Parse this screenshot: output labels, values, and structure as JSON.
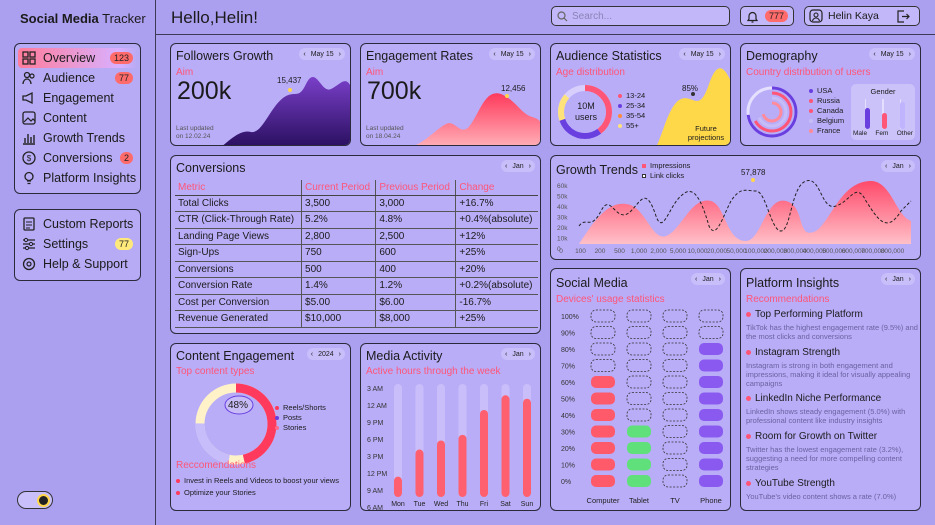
{
  "sidebar": {
    "brand_bold": "Social Media",
    "brand_rest": " Tracker",
    "items": [
      {
        "label": "Overview",
        "badge": "123"
      },
      {
        "label": "Audience",
        "badge": "77"
      },
      {
        "label": "Engagement"
      },
      {
        "label": "Content"
      },
      {
        "label": "Growth Trends"
      },
      {
        "label": "Conversions",
        "badge": "2"
      },
      {
        "label": "Platform Insights"
      }
    ],
    "items2": [
      {
        "label": "Custom Reports"
      },
      {
        "label": "Settings",
        "badge": "77"
      },
      {
        "label": "Help & Support"
      }
    ]
  },
  "header": {
    "greeting": "Hello,Helin!",
    "search_placeholder": "Search...",
    "notif_count": "777",
    "user_name": "Helin Kaya"
  },
  "followers": {
    "title": "Followers Growth",
    "period": "May 15",
    "aim_label": "Aim",
    "value": "200k",
    "peak": "15,437",
    "updated_label": "Last updated",
    "updated": "on 12.02.24"
  },
  "engagement": {
    "title": "Engagement Rates",
    "period": "May 15",
    "aim_label": "Aim",
    "value": "700k",
    "peak": "12,456",
    "updated_label": "Last updated",
    "updated": "on 18.04.24"
  },
  "audience": {
    "title": "Audience Statistics",
    "period": "May 15",
    "subtitle": "Age distribution",
    "center": "10M users",
    "ages": [
      "13-24",
      "25-34",
      "35-54",
      "55+"
    ],
    "proj_pct": "85%",
    "proj_label": "Future projections"
  },
  "demography": {
    "title": "Demography",
    "period": "May 15",
    "subtitle": "Country distribution of users",
    "countries": [
      "USA",
      "Russia",
      "Canada",
      "Belgium",
      "France"
    ],
    "gender_title": "Gender",
    "genders": [
      "Male",
      "Fem",
      "Other"
    ],
    "gender_values": [
      0.7,
      0.55,
      0.9
    ]
  },
  "conversions": {
    "title": "Conversions",
    "period": "Jan",
    "headers": [
      "Metric",
      "Current Period",
      "Previous Period",
      "Change"
    ],
    "rows": [
      [
        "Total Clicks",
        "3,500",
        "3,000",
        "+16.7%"
      ],
      [
        "CTR (Click-Through Rate)",
        "5.2%",
        "4.8%",
        "+0.4%(absolute)"
      ],
      [
        "Landing Page Views",
        "2,800",
        "2,500",
        "+12%"
      ],
      [
        "Sign-Ups",
        "750",
        "600",
        "+25%"
      ],
      [
        "Conversions",
        "500",
        "400",
        "+20%"
      ],
      [
        "Conversion Rate",
        "1.4%",
        "1.2%",
        "+0.2%(absolute)"
      ],
      [
        "Cost per Conversion",
        "$5.00",
        "$6.00",
        "-16.7%"
      ],
      [
        "Revenue Generated",
        "$10,000",
        "$8,000",
        "+25%"
      ]
    ]
  },
  "growth": {
    "title": "Growth Trends",
    "period": "Jan",
    "legend": [
      "Impressions",
      "Link clicks"
    ],
    "peak": "57,878",
    "yticks": [
      "60k",
      "50k",
      "40k",
      "30k",
      "20k",
      "10k",
      "0"
    ],
    "xticks": [
      "0",
      "100",
      "200",
      "500",
      "1,000",
      "2,000",
      "5,000",
      "10,000",
      "20,000",
      "50,000",
      "100,000",
      "200,000",
      "300,000",
      "400,000",
      "500,000",
      "600,000",
      "700,000",
      "800,000"
    ]
  },
  "social": {
    "title": "Social Media",
    "period": "Jan",
    "subtitle": "Devices' usage statistics",
    "yticks": [
      "100%",
      "90%",
      "80%",
      "70%",
      "60%",
      "50%",
      "40%",
      "30%",
      "20%",
      "10%",
      "0%"
    ],
    "devices": [
      "Computer",
      "Tablet",
      "TV",
      "Phone"
    ],
    "levels": [
      0.7,
      0.4,
      0,
      0.9
    ]
  },
  "platform": {
    "title": "Platform Insights",
    "period": "Jan",
    "subtitle": "Recommendations",
    "items": [
      {
        "h": "Top Performing Platform",
        "d": "TikTok has the highest engagement rate (9.5%) and the most clicks and conversions"
      },
      {
        "h": "Instagram Strength",
        "d": "Instagram is strong in both engagement and impressions, making it ideal for visually appealing campaigns"
      },
      {
        "h": "LinkedIn Niche Performance",
        "d": "LinkedIn shows steady engagement (5.0%) with professional content like industry insights"
      },
      {
        "h": "Room for Growth on Twitter",
        "d": "Twitter has the lowest engagement rate (3.2%), suggesting a need for more compelling content strategies"
      },
      {
        "h": "YouTube Strength",
        "d": "YouTube's video content shows a rate (7.0%)"
      }
    ]
  },
  "content": {
    "title": "Content Engagement",
    "period": "2024",
    "subtitle": "Top content types",
    "center": "48%",
    "types": [
      "Reels/Shorts",
      "Posts",
      "Stories"
    ],
    "rec_title": "Reccomendations",
    "recs": [
      "Invest in Reels and Videos to boost your views",
      "Optimize your Stories"
    ]
  },
  "media": {
    "title": "Media Activity",
    "period": "Jan",
    "subtitle": "Active hours through the week",
    "yticks": [
      "3 AM",
      "12 AM",
      "9 PM",
      "6 PM",
      "3 PM",
      "12 PM",
      "9 AM",
      "6 AM"
    ],
    "days": [
      "Mon",
      "Tue",
      "Wed",
      "Thu",
      "Fri",
      "Sat",
      "Sun"
    ],
    "values": [
      0.18,
      0.42,
      0.5,
      0.55,
      0.77,
      0.9,
      0.87
    ]
  },
  "colors": {
    "accent": "#ff5577",
    "bg": "#ab9ff0",
    "card": "#b9adf8",
    "purple": "#4a2a8a"
  }
}
